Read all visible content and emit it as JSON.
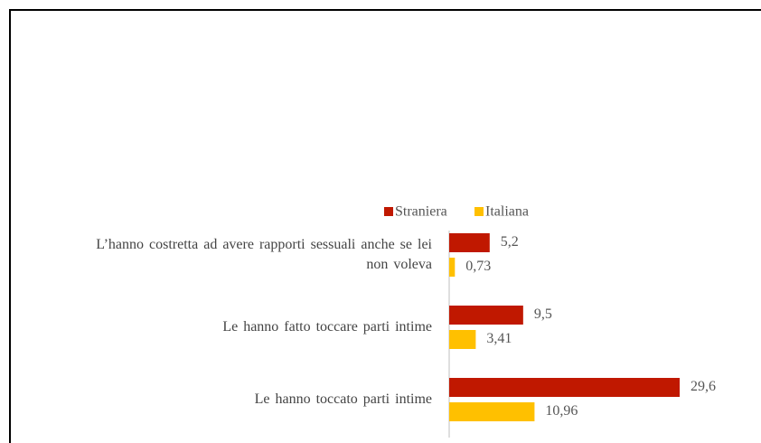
{
  "chart_data": {
    "type": "hbar",
    "categories": [
      "L’hanno costretta ad avere rapporti sessuali anche se lei non voleva",
      "Le hanno fatto toccare parti intime",
      "Le hanno toccato parti intime"
    ],
    "series": [
      {
        "name": "Straniera",
        "color": "#c01800",
        "values": [
          5.2,
          9.5,
          29.6
        ],
        "value_labels": [
          "5,2",
          "9,5",
          "29,6"
        ]
      },
      {
        "name": "Italiana",
        "color": "#ffc000",
        "values": [
          0.73,
          3.41,
          10.96
        ],
        "value_labels": [
          "0,73",
          "3,41",
          "10,96"
        ]
      }
    ],
    "legend": "top"
  }
}
